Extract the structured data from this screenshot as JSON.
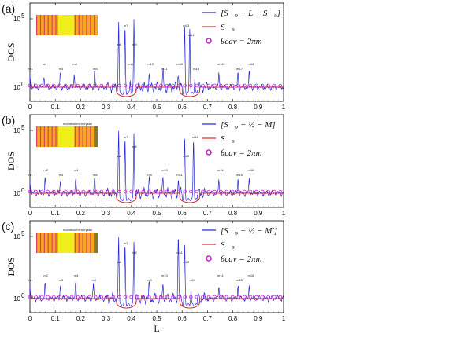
{
  "chart_data": [
    {
      "type": "line",
      "panel_label": "(a)",
      "ylabel": "DOS",
      "yscale": "log",
      "ytick_labels": [
        "10",
        "10"
      ],
      "ytick_exponents": [
        "0",
        "5"
      ],
      "xlim": [
        0,
        1
      ],
      "x_ticks": [
        "0",
        "0.1",
        "0.2",
        "0.3",
        "0.4",
        "0.5",
        "0.6",
        "0.7",
        "0.8",
        "0.9",
        "1"
      ],
      "legend": [
        {
          "label": "[S⃗₉ − L − S⃗₉]",
          "color": "#2a2ad8",
          "kind": "line"
        },
        {
          "label": "S⃗₉",
          "color": "#e03030",
          "kind": "line"
        },
        {
          "label": "θcav = 2πm",
          "color": "#cc22cc",
          "kind": "circle"
        }
      ],
      "peaks": [
        0.0,
        0.055,
        0.12,
        0.175,
        0.255,
        0.35,
        0.375,
        0.395,
        0.41,
        0.47,
        0.525,
        0.585,
        0.61,
        0.63,
        0.65,
        0.745,
        0.82,
        0.865
      ],
      "tall_peaks": [
        0.35,
        0.375,
        0.41,
        0.61,
        0.63
      ],
      "red_dips": [
        [
          0.34,
          0.42
        ],
        [
          0.59,
          0.67
        ]
      ]
    },
    {
      "type": "line",
      "panel_label": "(b)",
      "ylabel": "DOS",
      "yscale": "log",
      "ytick_labels": [
        "10",
        "10"
      ],
      "ytick_exponents": [
        "0",
        "5"
      ],
      "xlim": [
        0,
        1
      ],
      "x_ticks": [
        "0",
        "0.1",
        "0.2",
        "0.3",
        "0.4",
        "0.5",
        "0.6",
        "0.7",
        "0.8",
        "0.9",
        "1"
      ],
      "inset_text": "ncontinuum=ncrystal",
      "legend": [
        {
          "label": "[S⃗₉ − ½ − M]",
          "color": "#2a2ad8",
          "kind": "line"
        },
        {
          "label": "S⃗₉",
          "color": "#e03030",
          "kind": "line"
        },
        {
          "label": "θcav = 2πm",
          "color": "#cc22cc",
          "kind": "circle"
        }
      ],
      "peaks": [
        0.0,
        0.06,
        0.12,
        0.18,
        0.255,
        0.35,
        0.375,
        0.41,
        0.47,
        0.525,
        0.585,
        0.61,
        0.645,
        0.745,
        0.82,
        0.865
      ],
      "tall_peaks": [
        0.35,
        0.375,
        0.41,
        0.61,
        0.645
      ],
      "red_dips": [
        [
          0.34,
          0.42
        ],
        [
          0.59,
          0.67
        ]
      ]
    },
    {
      "type": "line",
      "panel_label": "(c)",
      "ylabel": "DOS",
      "yscale": "log",
      "ytick_labels": [
        "10",
        "10"
      ],
      "ytick_exponents": [
        "0",
        "5"
      ],
      "xlim": [
        0,
        1
      ],
      "x_ticks": [
        "0",
        "0.1",
        "0.2",
        "0.3",
        "0.4",
        "0.5",
        "0.6",
        "0.7",
        "0.8",
        "0.9",
        "1"
      ],
      "xlabel": "L",
      "inset_text": "ncontinuum=ncrystal",
      "legend": [
        {
          "label": "[S⃗₉ − ½ − M′]",
          "color": "#2a2ad8",
          "kind": "line"
        },
        {
          "label": "S⃗₉",
          "color": "#e03030",
          "kind": "line"
        },
        {
          "label": "θcav = 2πm",
          "color": "#cc22cc",
          "kind": "circle"
        }
      ],
      "peaks": [
        0.0,
        0.06,
        0.12,
        0.18,
        0.25,
        0.35,
        0.375,
        0.41,
        0.47,
        0.525,
        0.585,
        0.61,
        0.635,
        0.745,
        0.82,
        0.865
      ],
      "tall_peaks": [
        0.35,
        0.375,
        0.41,
        0.585,
        0.61
      ],
      "red_dips": [
        [
          0.34,
          0.42
        ],
        [
          0.59,
          0.67
        ]
      ]
    }
  ],
  "colors": {
    "blue": "#2a2ad8",
    "red": "#e03030",
    "magenta": "#cc22cc"
  }
}
